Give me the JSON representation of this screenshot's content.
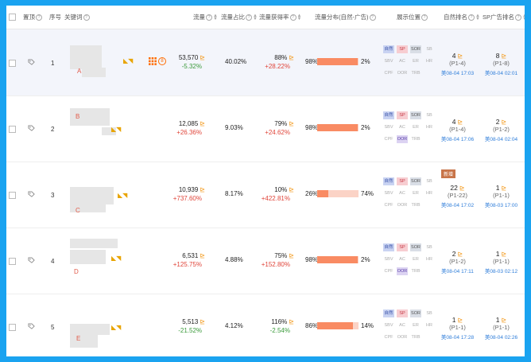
{
  "header": {
    "pin": "置顶",
    "seq": "序号",
    "keyword": "关键词",
    "traffic": "流量",
    "share": "流量占比",
    "gain": "流量获得率",
    "dist": "流量分布(自然-广告)",
    "position": "展示位置",
    "natural_rank": "自然排名",
    "sp_rank": "SP广告排名"
  },
  "position_tags": [
    "自然",
    "SP",
    "SOR",
    "SB",
    "SBV",
    "AC",
    "ER",
    "HR",
    "CPF",
    "OOR",
    "TRB"
  ],
  "rows": [
    {
      "idx": "1",
      "kw": "A",
      "traffic": "53,570",
      "traffic_chg": "-5.32%",
      "share": "40.02%",
      "gain": "88%",
      "gain_chg": "+28.22%",
      "nat_pct": "98%",
      "ad_pct": "2%",
      "nat_frac": 0.98,
      "nat_rank": "4",
      "nat_range": "(P1-4)",
      "nat_time": "美08-04 17:03",
      "sp_rank": "8",
      "sp_range": "(P1-8)",
      "sp_time": "美08-04 02:01",
      "badge": "",
      "active": [
        "自然",
        "SP",
        "SOR"
      ]
    },
    {
      "idx": "2",
      "kw": "B",
      "traffic": "12,085",
      "traffic_chg": "+26.36%",
      "share": "9.03%",
      "gain": "79%",
      "gain_chg": "+24.62%",
      "nat_pct": "98%",
      "ad_pct": "2%",
      "nat_frac": 0.98,
      "nat_rank": "4",
      "nat_range": "(P1-4)",
      "nat_time": "美08-04 17:06",
      "sp_rank": "2",
      "sp_range": "(P1-2)",
      "sp_time": "美08-04 02:04",
      "badge": "",
      "active": [
        "自然",
        "SP",
        "SOR",
        "OOR"
      ]
    },
    {
      "idx": "3",
      "kw": "C",
      "traffic": "10,939",
      "traffic_chg": "+737.60%",
      "share": "8.17%",
      "gain": "10%",
      "gain_chg": "+422.81%",
      "nat_pct": "26%",
      "ad_pct": "74%",
      "nat_frac": 0.26,
      "nat_rank": "22",
      "nat_range": "(P1-22)",
      "nat_time": "美08-04 17:02",
      "sp_rank": "1",
      "sp_range": "(P1-1)",
      "sp_time": "美08-03 17:00",
      "badge": "新增",
      "active": [
        "自然",
        "SP",
        "SOR"
      ]
    },
    {
      "idx": "4",
      "kw": "D",
      "traffic": "6,531",
      "traffic_chg": "+125.75%",
      "share": "4.88%",
      "gain": "75%",
      "gain_chg": "+152.80%",
      "nat_pct": "98%",
      "ad_pct": "2%",
      "nat_frac": 0.98,
      "nat_rank": "2",
      "nat_range": "(P1-2)",
      "nat_time": "美08-04 17:11",
      "sp_rank": "1",
      "sp_range": "(P1-1)",
      "sp_time": "美08-03 02:12",
      "badge": "",
      "active": [
        "自然",
        "SP",
        "SOR",
        "OOR"
      ]
    },
    {
      "idx": "5",
      "kw": "E",
      "traffic": "5,513",
      "traffic_chg": "-21.52%",
      "share": "4.12%",
      "gain": "116%",
      "gain_chg": "-2.54%",
      "nat_pct": "86%",
      "ad_pct": "14%",
      "nat_frac": 0.86,
      "nat_rank": "1",
      "nat_range": "(P1-1)",
      "nat_time": "美08-04 17:28",
      "sp_rank": "1",
      "sp_range": "(P1-1)",
      "sp_time": "美08-04 02:26",
      "badge": "",
      "active": [
        "自然",
        "SP",
        "SOR"
      ]
    }
  ],
  "colors": {
    "frame": "#1aa3f0",
    "bar_nat": "#f98b63",
    "bar_ad": "#fbd3c6",
    "rise": "#e0453a",
    "fall": "#3a9a3a",
    "link": "#2c7cd9"
  }
}
